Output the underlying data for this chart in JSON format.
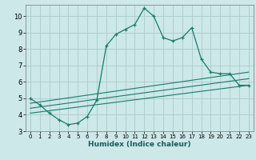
{
  "title": "",
  "xlabel": "Humidex (Indice chaleur)",
  "bg_color": "#cce8e8",
  "grid_color": "#aacccc",
  "line_color": "#1a7a6a",
  "xlim": [
    -0.5,
    23.5
  ],
  "ylim": [
    3.0,
    10.7
  ],
  "xticks": [
    0,
    1,
    2,
    3,
    4,
    5,
    6,
    7,
    8,
    9,
    10,
    11,
    12,
    13,
    14,
    15,
    16,
    17,
    18,
    19,
    20,
    21,
    22,
    23
  ],
  "yticks": [
    3,
    4,
    5,
    6,
    7,
    8,
    9,
    10
  ],
  "series1_x": [
    0,
    1,
    2,
    3,
    4,
    5,
    6,
    7,
    8,
    9,
    10,
    11,
    12,
    13,
    14,
    15,
    16,
    17,
    18,
    19,
    20,
    21,
    22,
    23
  ],
  "series1_y": [
    5.0,
    4.6,
    4.1,
    3.7,
    3.4,
    3.5,
    3.9,
    4.9,
    8.2,
    8.9,
    9.2,
    9.5,
    10.5,
    10.0,
    8.7,
    8.5,
    8.7,
    9.3,
    7.4,
    6.6,
    6.5,
    6.5,
    5.8,
    5.8
  ],
  "series2_x": [
    0,
    23
  ],
  "series2_y": [
    4.7,
    6.6
  ],
  "series3_x": [
    0,
    23
  ],
  "series3_y": [
    4.4,
    6.2
  ],
  "series4_x": [
    0,
    23
  ],
  "series4_y": [
    4.1,
    5.8
  ]
}
